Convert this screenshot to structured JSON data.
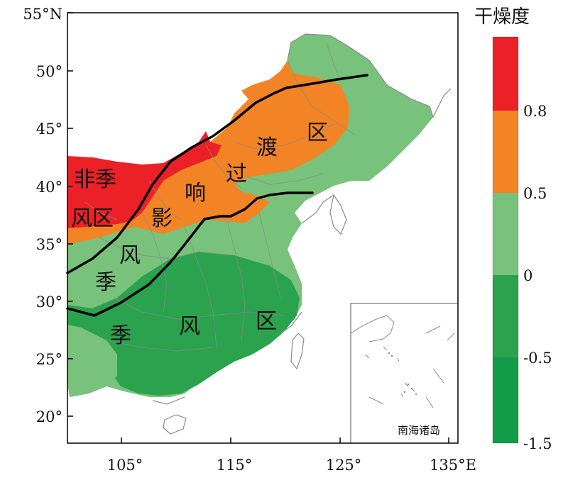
{
  "map": {
    "lon_ticks": [
      "105°",
      "115°",
      "125°",
      "135°E"
    ],
    "lat_ticks": [
      "55°N",
      "50°",
      "45°",
      "40°",
      "35°",
      "30°",
      "25°",
      "20°"
    ],
    "inset_label": "南海诸岛",
    "region_labels": [
      "非季",
      "风区",
      "影",
      "响",
      "过",
      "渡",
      "区",
      "风",
      "季",
      "季",
      "风",
      "区"
    ]
  },
  "legend": {
    "title": "干燥度",
    "tick_labels": [
      "0.8",
      "0.5",
      "0",
      "-0.5",
      "-1.5"
    ],
    "colors": {
      "very_dry": "#ec2127",
      "dry": "#f28425",
      "moist_light": "#78c27b",
      "moist": "#2ba24d",
      "very_moist": "#139c48"
    }
  },
  "colors": {
    "frame": "#000000",
    "border_gray": "#8a8a8a",
    "divider_line": "#000000"
  }
}
